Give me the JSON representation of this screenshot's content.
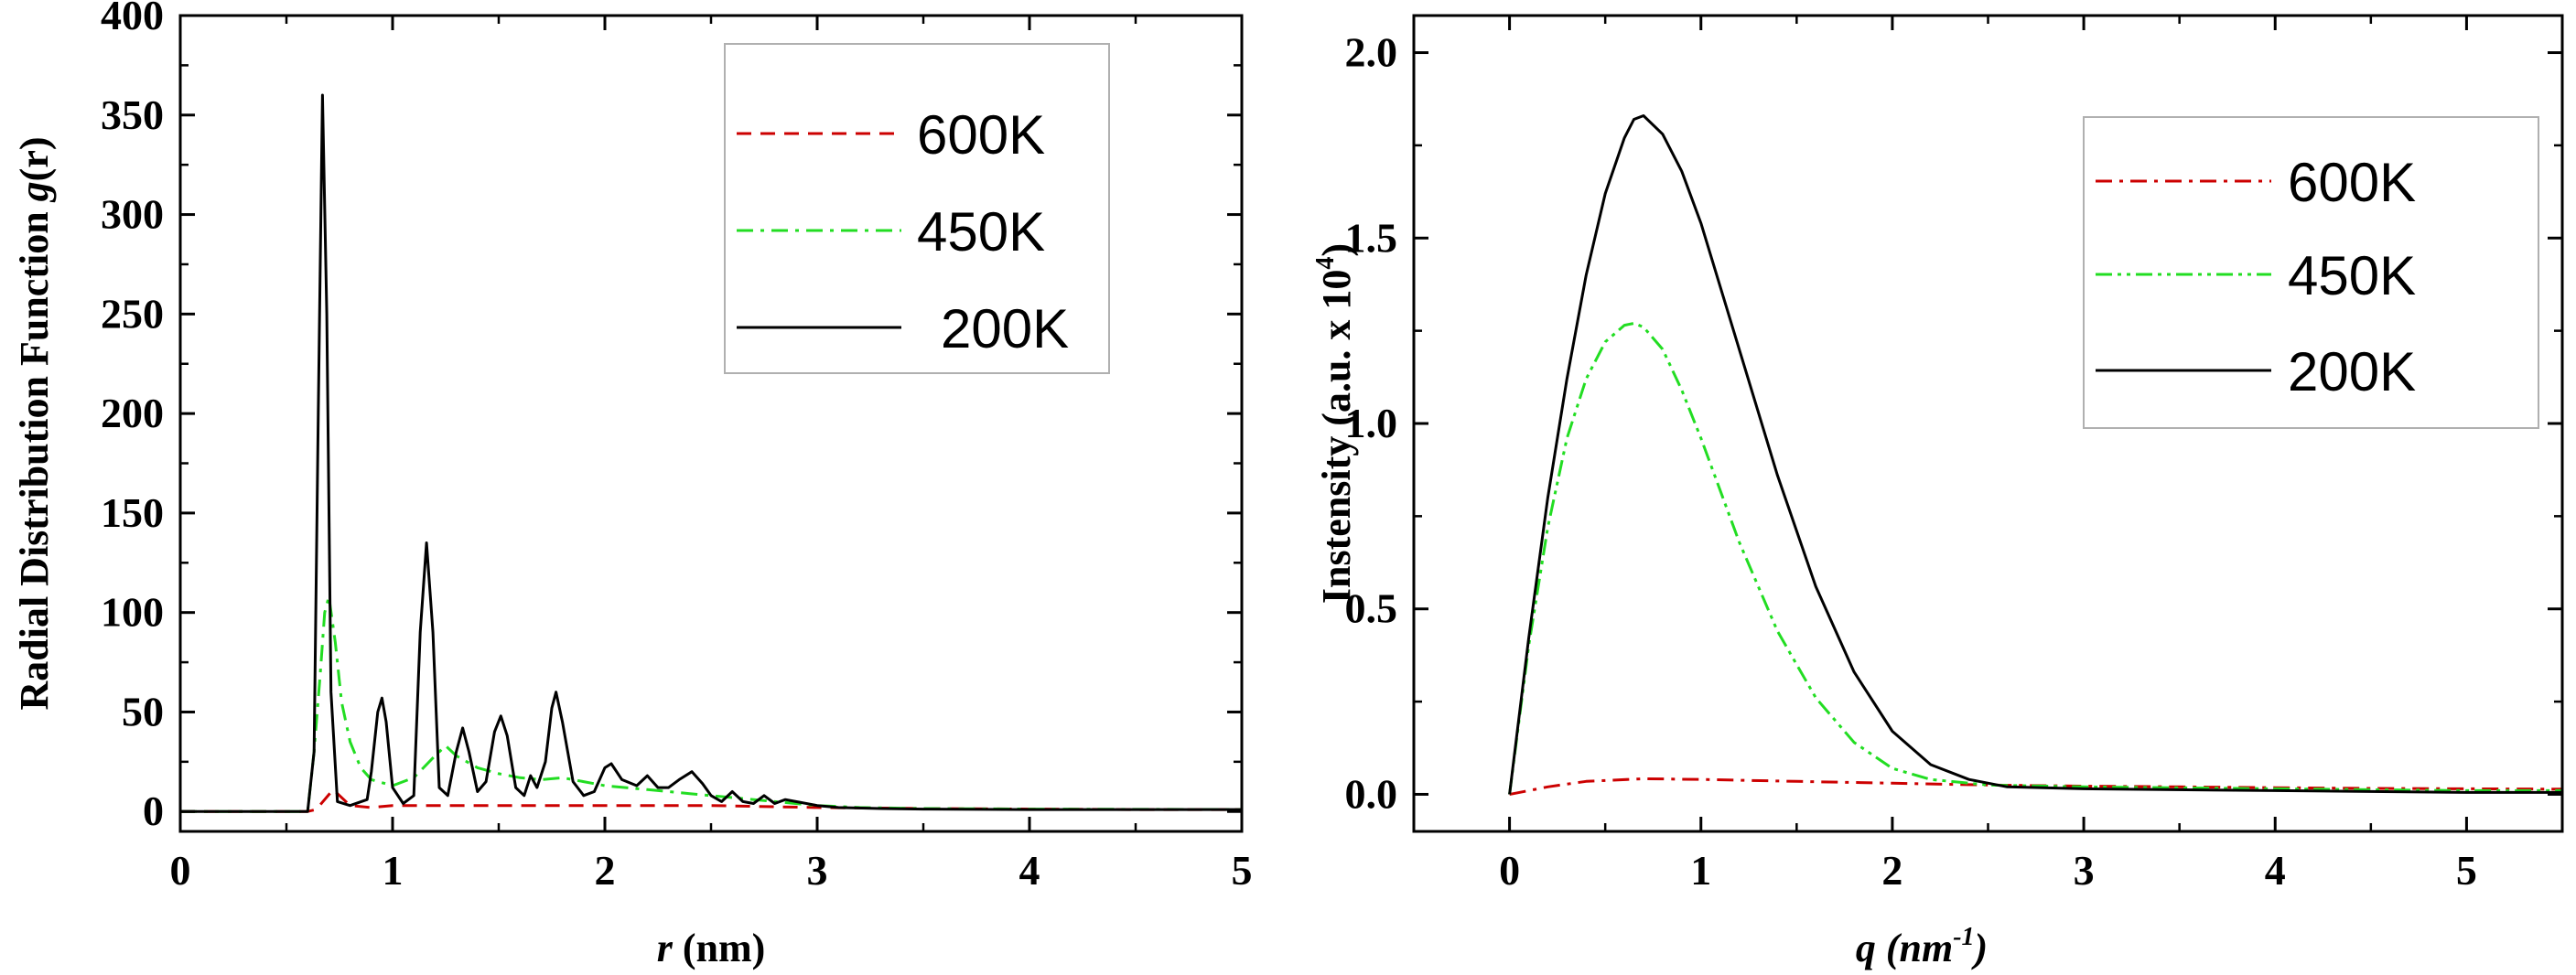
{
  "chart_data": [
    {
      "type": "line",
      "xlabel_var": "r",
      "xlabel_unit": " (nm)",
      "ylabel_prefix": "Radial Distribution Function ",
      "ylabel_var": "g",
      "ylabel_suffix": "(r)",
      "xlim": [
        0,
        5
      ],
      "ylim": [
        -10,
        400
      ],
      "xticks": [
        0,
        1,
        2,
        3,
        4,
        5
      ],
      "yticks": [
        0,
        50,
        100,
        150,
        200,
        250,
        300,
        350,
        400
      ],
      "legend_position": "top-right",
      "series": [
        {
          "name": "600K",
          "color": "#cc0000",
          "dash": "dashed",
          "points": [
            [
              0,
              0
            ],
            [
              0.6,
              0
            ],
            [
              0.64,
              1
            ],
            [
              0.68,
              6
            ],
            [
              0.72,
              11
            ],
            [
              0.75,
              8
            ],
            [
              0.8,
              3
            ],
            [
              0.9,
              2
            ],
            [
              1.0,
              3
            ],
            [
              1.2,
              3
            ],
            [
              1.5,
              3
            ],
            [
              2.0,
              3
            ],
            [
              2.5,
              3
            ],
            [
              3.0,
              2
            ],
            [
              3.5,
              1.5
            ],
            [
              4.0,
              1.2
            ],
            [
              4.5,
              1
            ],
            [
              5.0,
              1
            ]
          ]
        },
        {
          "name": "450K",
          "color": "#22dd22",
          "dash": "dashdot",
          "points": [
            [
              0,
              0
            ],
            [
              0.6,
              0
            ],
            [
              0.63,
              30
            ],
            [
              0.66,
              70
            ],
            [
              0.68,
              100
            ],
            [
              0.7,
              108
            ],
            [
              0.73,
              85
            ],
            [
              0.76,
              55
            ],
            [
              0.8,
              35
            ],
            [
              0.85,
              22
            ],
            [
              0.9,
              16
            ],
            [
              1.0,
              13
            ],
            [
              1.1,
              17
            ],
            [
              1.2,
              28
            ],
            [
              1.25,
              33
            ],
            [
              1.3,
              28
            ],
            [
              1.4,
              22
            ],
            [
              1.5,
              19
            ],
            [
              1.6,
              17
            ],
            [
              1.7,
              16
            ],
            [
              1.8,
              17
            ],
            [
              1.9,
              15
            ],
            [
              2.0,
              13
            ],
            [
              2.2,
              11
            ],
            [
              2.4,
              9
            ],
            [
              2.6,
              7
            ],
            [
              2.8,
              5
            ],
            [
              3.0,
              3
            ],
            [
              3.2,
              2
            ],
            [
              3.5,
              1.5
            ],
            [
              4.0,
              1.2
            ],
            [
              5.0,
              1
            ]
          ]
        },
        {
          "name": "200K",
          "color": "#000000",
          "dash": "solid",
          "points": [
            [
              0,
              0
            ],
            [
              0.6,
              0
            ],
            [
              0.63,
              30
            ],
            [
              0.65,
              200
            ],
            [
              0.67,
              360
            ],
            [
              0.69,
              250
            ],
            [
              0.71,
              60
            ],
            [
              0.74,
              5
            ],
            [
              0.8,
              3
            ],
            [
              0.88,
              6
            ],
            [
              0.9,
              20
            ],
            [
              0.93,
              50
            ],
            [
              0.95,
              57
            ],
            [
              0.97,
              45
            ],
            [
              1.0,
              12
            ],
            [
              1.05,
              4
            ],
            [
              1.1,
              8
            ],
            [
              1.13,
              90
            ],
            [
              1.16,
              135
            ],
            [
              1.19,
              90
            ],
            [
              1.22,
              12
            ],
            [
              1.26,
              8
            ],
            [
              1.3,
              30
            ],
            [
              1.33,
              42
            ],
            [
              1.36,
              30
            ],
            [
              1.4,
              10
            ],
            [
              1.44,
              15
            ],
            [
              1.48,
              40
            ],
            [
              1.51,
              48
            ],
            [
              1.54,
              38
            ],
            [
              1.58,
              12
            ],
            [
              1.62,
              8
            ],
            [
              1.65,
              18
            ],
            [
              1.68,
              12
            ],
            [
              1.72,
              25
            ],
            [
              1.75,
              52
            ],
            [
              1.77,
              60
            ],
            [
              1.8,
              45
            ],
            [
              1.85,
              15
            ],
            [
              1.9,
              8
            ],
            [
              1.95,
              10
            ],
            [
              2.0,
              22
            ],
            [
              2.03,
              24
            ],
            [
              2.08,
              16
            ],
            [
              2.15,
              13
            ],
            [
              2.2,
              18
            ],
            [
              2.25,
              12
            ],
            [
              2.3,
              12
            ],
            [
              2.35,
              16
            ],
            [
              2.41,
              20
            ],
            [
              2.46,
              14
            ],
            [
              2.5,
              8
            ],
            [
              2.55,
              5
            ],
            [
              2.6,
              10
            ],
            [
              2.65,
              5
            ],
            [
              2.7,
              4
            ],
            [
              2.75,
              8
            ],
            [
              2.8,
              4
            ],
            [
              2.85,
              6
            ],
            [
              2.9,
              5
            ],
            [
              3.0,
              3
            ],
            [
              3.1,
              2
            ],
            [
              3.3,
              1.5
            ],
            [
              3.5,
              1.2
            ],
            [
              4.0,
              1
            ],
            [
              5.0,
              1
            ]
          ]
        }
      ]
    },
    {
      "type": "line",
      "xlabel_var": "q",
      "xlabel_unit_open": " (nm",
      "xlabel_unit_exp": "-1",
      "xlabel_unit_close": ")",
      "ylabel_main": "Instensity (a.u. x 10",
      "ylabel_exp": "4",
      "ylabel_close": ")",
      "xlim": [
        -0.5,
        5.5
      ],
      "ylim": [
        -0.1,
        2.1
      ],
      "xticks": [
        0,
        1,
        2,
        3,
        4,
        5
      ],
      "yticks": [
        "0.0",
        "0.5",
        "1.0",
        "1.5",
        "2.0"
      ],
      "legend_position": "top-right",
      "series": [
        {
          "name": "600K",
          "color": "#cc0000",
          "dash": "dashdot",
          "points": [
            [
              0,
              0
            ],
            [
              0.2,
              0.02
            ],
            [
              0.4,
              0.035
            ],
            [
              0.7,
              0.042
            ],
            [
              1.0,
              0.04
            ],
            [
              1.5,
              0.035
            ],
            [
              2.0,
              0.03
            ],
            [
              2.5,
              0.025
            ],
            [
              3.0,
              0.022
            ],
            [
              3.5,
              0.02
            ],
            [
              4.0,
              0.018
            ],
            [
              4.5,
              0.016
            ],
            [
              5.0,
              0.015
            ],
            [
              5.5,
              0.014
            ]
          ]
        },
        {
          "name": "450K",
          "color": "#22dd22",
          "dash": "dashdotdot",
          "points": [
            [
              0,
              0
            ],
            [
              0.1,
              0.4
            ],
            [
              0.2,
              0.72
            ],
            [
              0.3,
              0.96
            ],
            [
              0.4,
              1.12
            ],
            [
              0.5,
              1.22
            ],
            [
              0.6,
              1.265
            ],
            [
              0.65,
              1.27
            ],
            [
              0.7,
              1.26
            ],
            [
              0.8,
              1.2
            ],
            [
              0.9,
              1.09
            ],
            [
              1.0,
              0.96
            ],
            [
              1.2,
              0.68
            ],
            [
              1.4,
              0.44
            ],
            [
              1.6,
              0.26
            ],
            [
              1.8,
              0.14
            ],
            [
              2.0,
              0.07
            ],
            [
              2.2,
              0.04
            ],
            [
              2.5,
              0.025
            ],
            [
              3.0,
              0.02
            ],
            [
              4.0,
              0.015
            ],
            [
              5.0,
              0.01
            ],
            [
              5.5,
              0.01
            ]
          ]
        },
        {
          "name": "200K",
          "color": "#000000",
          "dash": "solid",
          "points": [
            [
              0,
              0
            ],
            [
              0.1,
              0.42
            ],
            [
              0.2,
              0.8
            ],
            [
              0.3,
              1.12
            ],
            [
              0.4,
              1.4
            ],
            [
              0.5,
              1.62
            ],
            [
              0.6,
              1.77
            ],
            [
              0.65,
              1.82
            ],
            [
              0.7,
              1.83
            ],
            [
              0.8,
              1.78
            ],
            [
              0.9,
              1.68
            ],
            [
              1.0,
              1.54
            ],
            [
              1.2,
              1.2
            ],
            [
              1.4,
              0.86
            ],
            [
              1.6,
              0.56
            ],
            [
              1.8,
              0.33
            ],
            [
              2.0,
              0.17
            ],
            [
              2.2,
              0.08
            ],
            [
              2.4,
              0.04
            ],
            [
              2.6,
              0.02
            ],
            [
              3.0,
              0.015
            ],
            [
              4.0,
              0.01
            ],
            [
              5.0,
              0.005
            ],
            [
              5.5,
              0.005
            ]
          ]
        }
      ]
    }
  ]
}
